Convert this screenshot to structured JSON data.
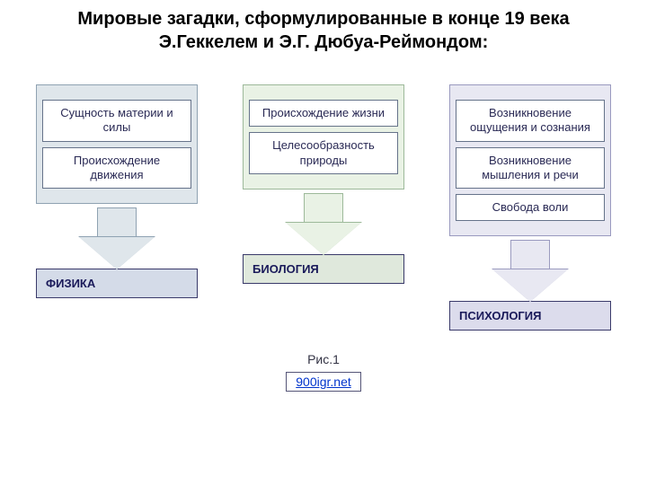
{
  "title": "Мировые загадки, сформулированные в конце 19 века Э.Геккелем и Э.Г. Дюбуа-Реймондом:",
  "columns": [
    {
      "items": [
        "Сущность материи и силы",
        "Происхождение движения"
      ],
      "label": "ФИЗИКА",
      "box_bg": "#dfe6eb",
      "box_border": "#8fa2b2",
      "arrow_fill": "#dfe6eb",
      "arrow_border": "#8fa2b2",
      "label_bg": "#d4dbe8"
    },
    {
      "items": [
        "Происхождение жизни",
        "Целесообразность природы"
      ],
      "label": "БИОЛОГИЯ",
      "box_bg": "#e9f2e5",
      "box_border": "#9db99a",
      "arrow_fill": "#e9f2e5",
      "arrow_border": "#9db99a",
      "label_bg": "#dfe8dc"
    },
    {
      "items": [
        "Возникновение ощущения и сознания",
        "Возникновение мышления и речи",
        "Свобода воли"
      ],
      "label": "ПСИХОЛОГИЯ",
      "box_bg": "#e8e8f2",
      "box_border": "#9a9abf",
      "arrow_fill": "#e8e8f2",
      "arrow_border": "#9a9abf",
      "label_bg": "#dcdcec"
    }
  ],
  "caption": "Рис.1",
  "link": "900igr.net"
}
